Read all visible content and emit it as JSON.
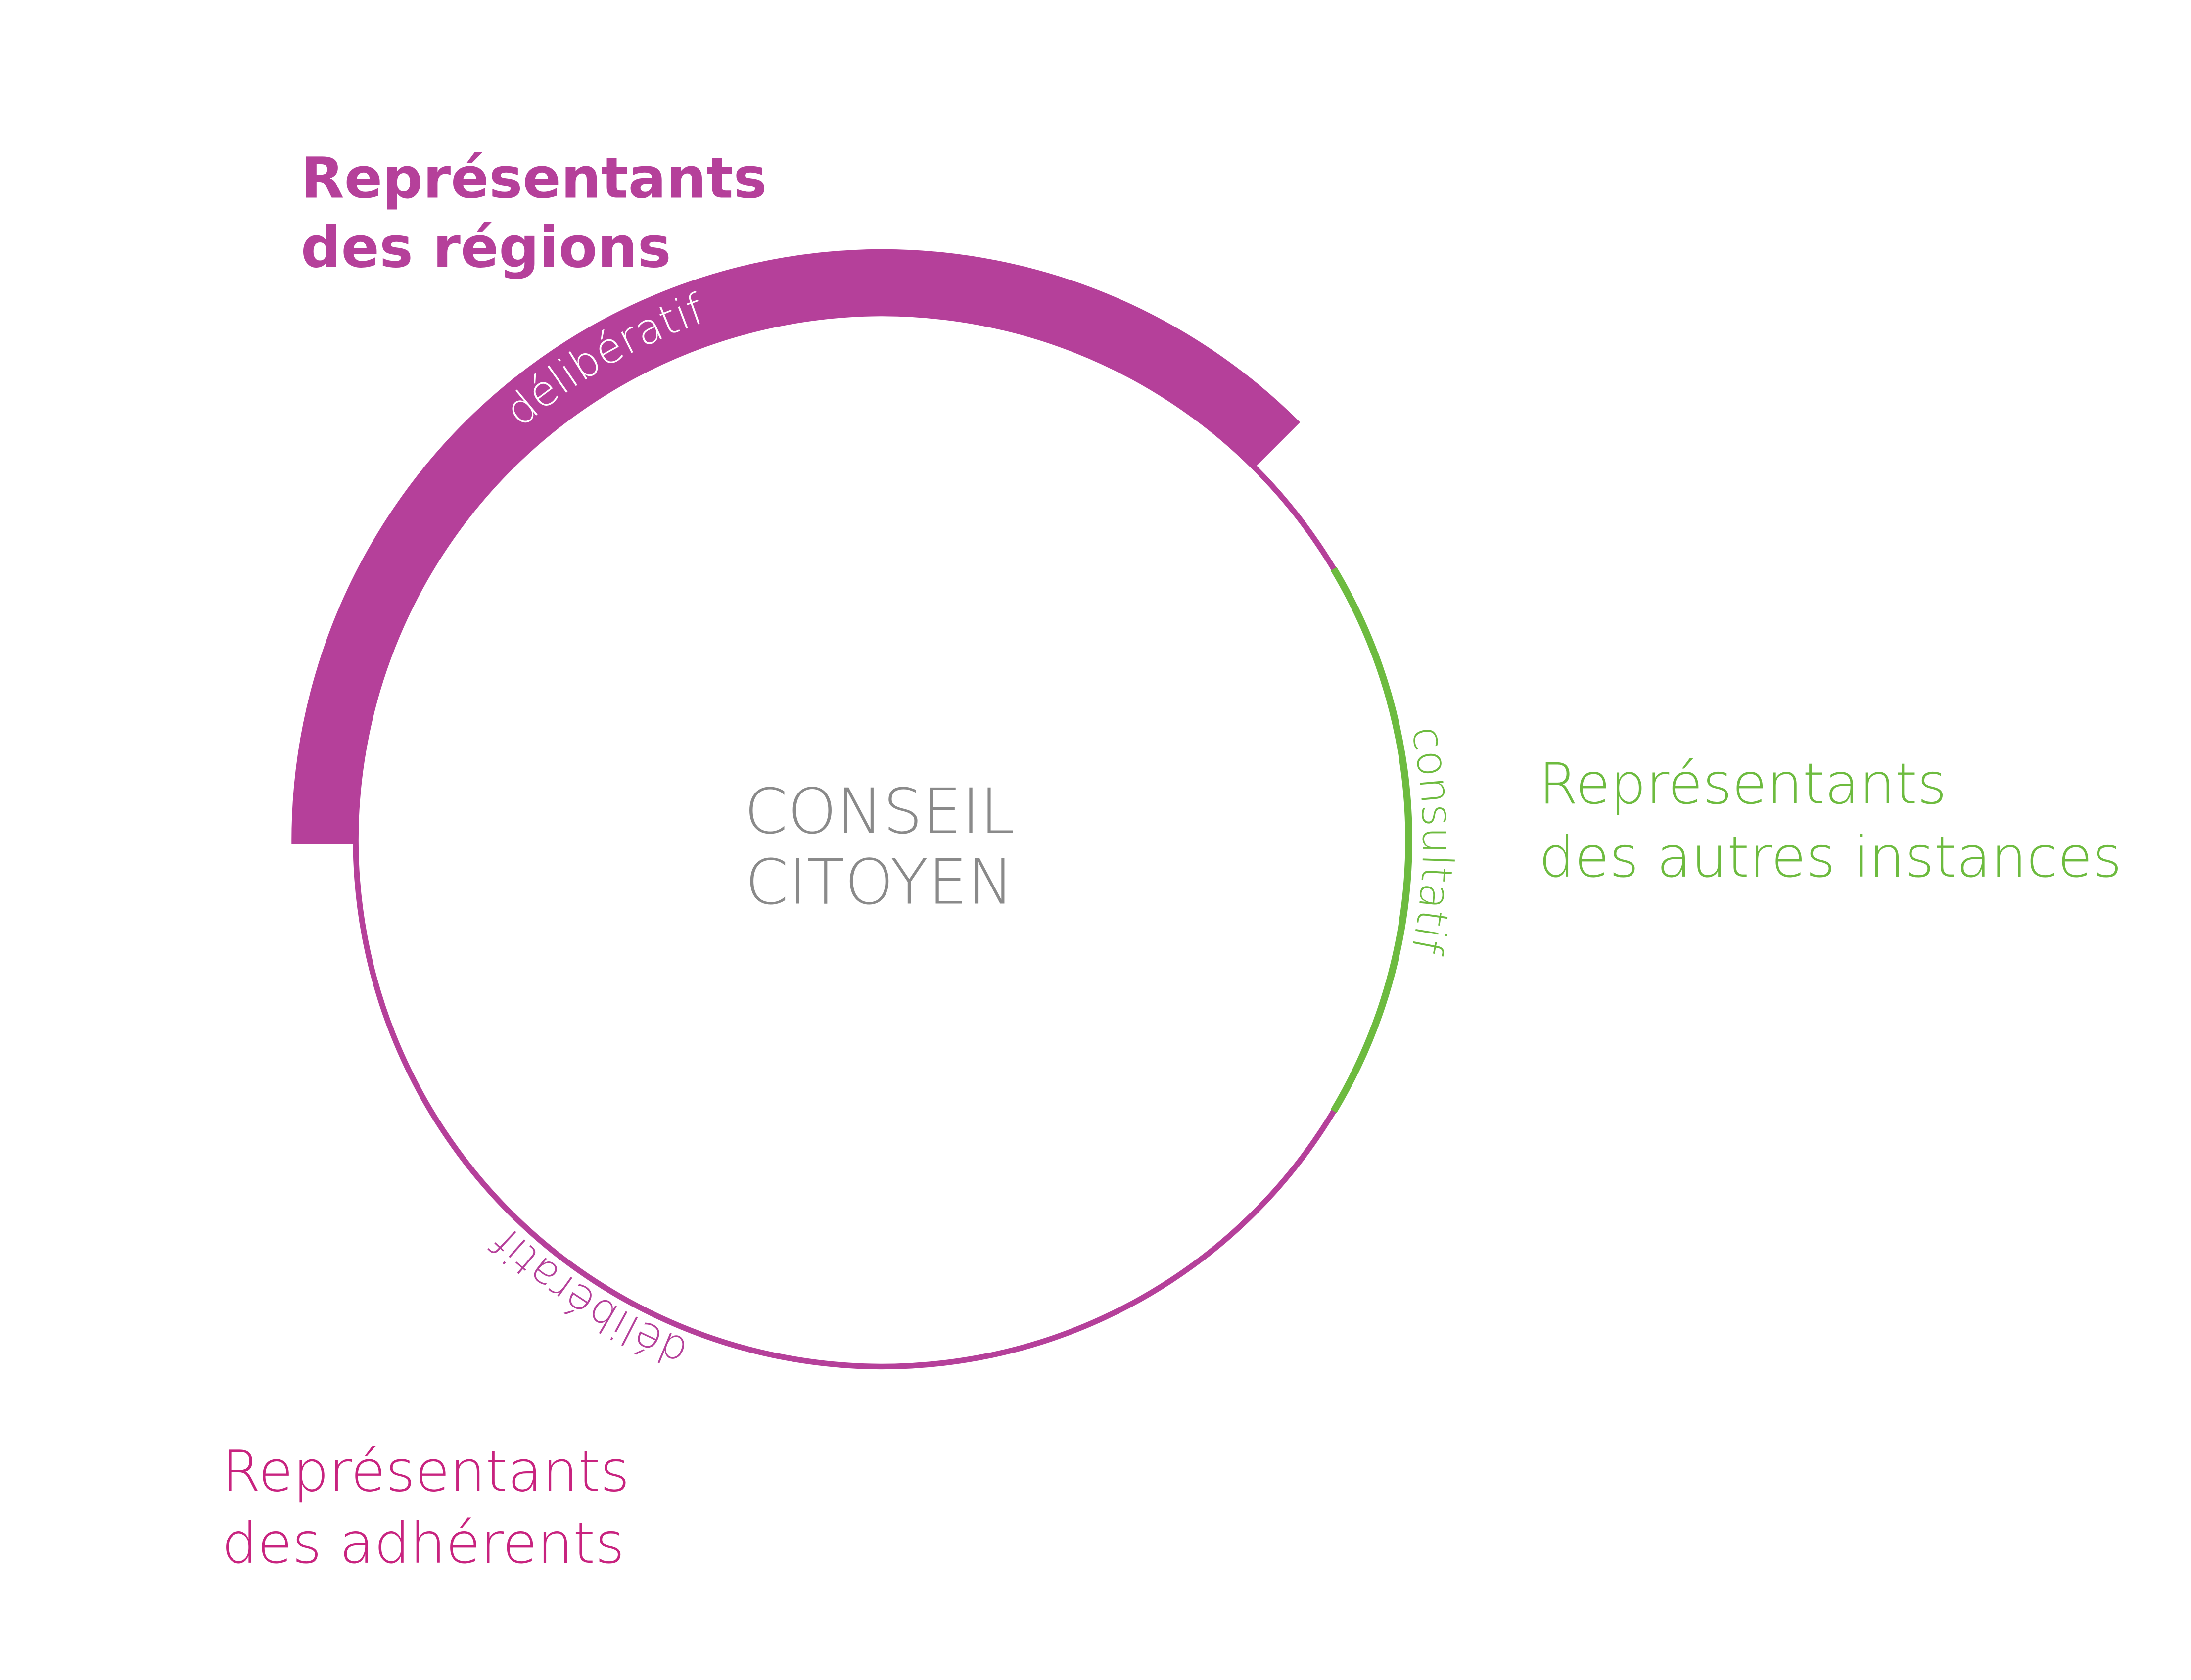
{
  "segments": [
    {
      "label": [
        "Représentants",
        "des régions"
      ],
      "mode": "délibératif"
    },
    {
      "label": [
        "Représentants",
        "des autres instances"
      ],
      "mode": "consultatif"
    },
    {
      "label": [
        "Représentants",
        "des adhérents"
      ],
      "mode": "délibératif"
    }
  ],
  "center": {
    "lines": [
      "CONSEIL",
      "CITOYEN"
    ]
  }
}
